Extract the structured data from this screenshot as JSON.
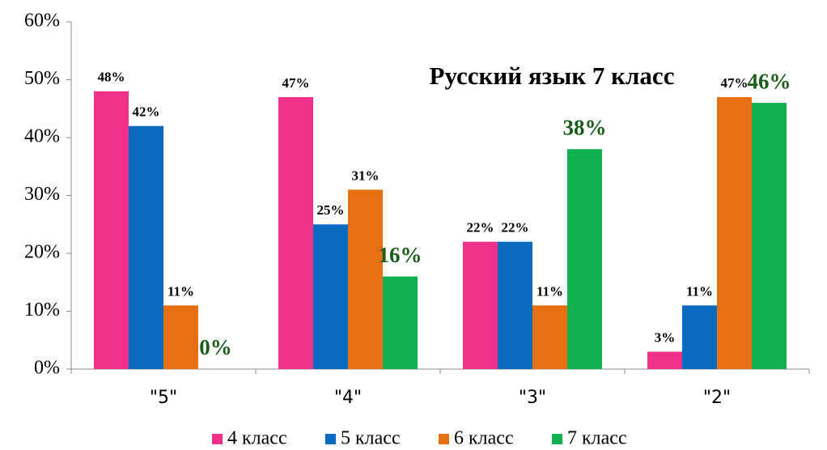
{
  "chart_data": {
    "type": "bar",
    "title": "Русский язык 7 класс",
    "categories": [
      "\"5\"",
      "\"4\"",
      "\"3\"",
      "\"2\""
    ],
    "series": [
      {
        "name": "4 класс",
        "color": "#f0308a",
        "values": [
          48,
          47,
          22,
          3
        ],
        "value_labels": [
          "48%",
          "47%",
          "22%",
          "3%"
        ]
      },
      {
        "name": "5 класс",
        "color": "#0a6ac0",
        "values": [
          42,
          25,
          22,
          11
        ],
        "value_labels": [
          "42%",
          "25%",
          "22%",
          "11%"
        ]
      },
      {
        "name": "6 класс",
        "color": "#e6700f",
        "values": [
          11,
          31,
          11,
          47
        ],
        "value_labels": [
          "11%",
          "31%",
          "11%",
          "47%"
        ]
      },
      {
        "name": "7 класс",
        "color": "#10b050",
        "values": [
          0,
          16,
          38,
          46
        ],
        "value_labels": [
          "0%",
          "16%",
          "38%",
          "46%"
        ]
      }
    ],
    "ylim": [
      0,
      60
    ],
    "yticks": [
      {
        "value": 0,
        "label": "0%"
      },
      {
        "value": 10,
        "label": "10%"
      },
      {
        "value": 20,
        "label": "20%"
      },
      {
        "value": 30,
        "label": "30%"
      },
      {
        "value": 40,
        "label": "40%"
      },
      {
        "value": 50,
        "label": "50%"
      },
      {
        "value": 60,
        "label": "60%"
      }
    ],
    "legend": "bottom"
  }
}
